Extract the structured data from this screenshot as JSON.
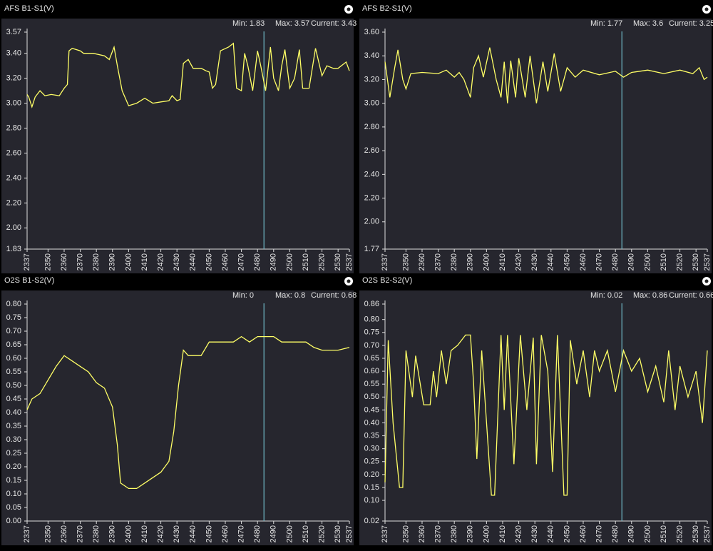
{
  "chart_data": [
    {
      "type": "line",
      "title": "AFS B1-S1(V)",
      "stats": [
        "Min: 1.83",
        "Max: 3.57",
        "Current: 3.43"
      ],
      "color": "#ffff66",
      "cursor_x": 2484,
      "x": [
        2337,
        2338,
        2340,
        2342,
        2345,
        2348,
        2352,
        2357,
        2360,
        2362,
        2363,
        2365,
        2370,
        2372,
        2378,
        2385,
        2388,
        2391,
        2393,
        2396,
        2400,
        2405,
        2410,
        2415,
        2420,
        2425,
        2427,
        2430,
        2432,
        2434,
        2437,
        2440,
        2445,
        2448,
        2450,
        2452,
        2454,
        2457,
        2462,
        2465,
        2467,
        2470,
        2472,
        2474,
        2477,
        2480,
        2482,
        2485,
        2488,
        2490,
        2493,
        2495,
        2497,
        2500,
        2503,
        2506,
        2508,
        2512,
        2516,
        2520,
        2523,
        2527,
        2530,
        2535,
        2537
      ],
      "values": [
        3.07,
        3.05,
        2.97,
        3.05,
        3.1,
        3.06,
        3.07,
        3.06,
        3.12,
        3.15,
        3.42,
        3.44,
        3.42,
        3.4,
        3.4,
        3.38,
        3.35,
        3.45,
        3.3,
        3.1,
        2.98,
        3.0,
        3.04,
        3.0,
        3.01,
        3.02,
        3.06,
        3.02,
        3.03,
        3.32,
        3.35,
        3.28,
        3.28,
        3.26,
        3.25,
        3.12,
        3.15,
        3.42,
        3.45,
        3.48,
        3.12,
        3.1,
        3.4,
        3.3,
        3.1,
        3.42,
        3.3,
        3.1,
        3.45,
        3.2,
        3.1,
        3.3,
        3.43,
        3.12,
        3.2,
        3.43,
        3.12,
        3.12,
        3.44,
        3.22,
        3.3,
        3.28,
        3.28,
        3.33,
        3.26
      ],
      "xlim": [
        2337,
        2537
      ],
      "xticks": [
        2337,
        2350,
        2360,
        2370,
        2380,
        2390,
        2400,
        2410,
        2420,
        2430,
        2440,
        2450,
        2460,
        2470,
        2480,
        2490,
        2500,
        2510,
        2520,
        2530,
        2537
      ],
      "ylim": [
        1.83,
        3.57
      ],
      "yticks": [
        1.83,
        {
          "value": 2,
          "label": "2.00"
        },
        {
          "value": 2.2,
          "label": "2.20"
        },
        {
          "value": 2.4,
          "label": "2.40"
        },
        {
          "value": 2.6,
          "label": "2.60"
        },
        {
          "value": 2.8,
          "label": "2.80"
        },
        {
          "value": 3,
          "label": "3.00"
        },
        {
          "value": 3.2,
          "label": "3.20"
        },
        {
          "value": 3.4,
          "label": "3.40"
        },
        3.57
      ]
    },
    {
      "type": "line",
      "title": "AFS B2-S1(V)",
      "stats": [
        "Min: 1.77",
        "Max: 3.6",
        "Current: 3.25"
      ],
      "color": "#ffff66",
      "cursor_x": 2484,
      "x": [
        2337,
        2340,
        2343,
        2345,
        2348,
        2350,
        2353,
        2360,
        2370,
        2375,
        2380,
        2383,
        2386,
        2390,
        2392,
        2395,
        2398,
        2402,
        2406,
        2409,
        2411,
        2413,
        2415,
        2418,
        2420,
        2424,
        2427,
        2431,
        2435,
        2438,
        2442,
        2446,
        2450,
        2455,
        2460,
        2470,
        2480,
        2485,
        2490,
        2500,
        2510,
        2520,
        2528,
        2532,
        2535,
        2537
      ],
      "values": [
        3.35,
        3.05,
        3.3,
        3.45,
        3.2,
        3.12,
        3.25,
        3.26,
        3.25,
        3.28,
        3.22,
        3.26,
        3.2,
        3.05,
        3.3,
        3.4,
        3.22,
        3.47,
        3.2,
        3.05,
        3.35,
        3.0,
        3.36,
        3.05,
        3.38,
        3.05,
        3.4,
        3.0,
        3.35,
        3.1,
        3.42,
        3.1,
        3.3,
        3.22,
        3.28,
        3.24,
        3.27,
        3.22,
        3.26,
        3.28,
        3.25,
        3.28,
        3.25,
        3.3,
        3.2,
        3.22
      ],
      "xlim": [
        2337,
        2537
      ],
      "xticks": [
        2337,
        2350,
        2360,
        2370,
        2380,
        2390,
        2400,
        2410,
        2420,
        2430,
        2440,
        2450,
        2460,
        2470,
        2480,
        2490,
        2500,
        2510,
        2520,
        2530,
        2537
      ],
      "ylim": [
        1.77,
        3.6
      ],
      "yticks": [
        1.77,
        {
          "value": 2,
          "label": "2.00"
        },
        {
          "value": 2.2,
          "label": "2.20"
        },
        {
          "value": 2.4,
          "label": "2.40"
        },
        {
          "value": 2.6,
          "label": "2.60"
        },
        {
          "value": 2.8,
          "label": "2.80"
        },
        {
          "value": 3,
          "label": "3.00"
        },
        {
          "value": 3.2,
          "label": "3.20"
        },
        {
          "value": 3.4,
          "label": "3.40"
        },
        {
          "value": 3.6,
          "label": "3.60"
        }
      ]
    },
    {
      "type": "line",
      "title": "O2S B1-S2(V)",
      "stats": [
        "Min: 0",
        "Max: 0.8",
        "Current: 0.68"
      ],
      "color": "#ffff66",
      "cursor_x": 2484,
      "x": [
        2337,
        2340,
        2345,
        2350,
        2355,
        2360,
        2365,
        2370,
        2375,
        2380,
        2385,
        2390,
        2393,
        2395,
        2400,
        2405,
        2410,
        2415,
        2420,
        2425,
        2428,
        2431,
        2434,
        2437,
        2445,
        2450,
        2465,
        2470,
        2475,
        2480,
        2490,
        2495,
        2510,
        2515,
        2520,
        2530,
        2537
      ],
      "values": [
        0.41,
        0.45,
        0.47,
        0.52,
        0.57,
        0.61,
        0.59,
        0.57,
        0.55,
        0.51,
        0.49,
        0.42,
        0.28,
        0.14,
        0.12,
        0.12,
        0.14,
        0.16,
        0.18,
        0.22,
        0.33,
        0.5,
        0.63,
        0.61,
        0.61,
        0.66,
        0.66,
        0.68,
        0.66,
        0.68,
        0.68,
        0.66,
        0.66,
        0.64,
        0.63,
        0.63,
        0.64
      ],
      "xlim": [
        2337,
        2537
      ],
      "xticks": [
        2337,
        2350,
        2360,
        2370,
        2380,
        2390,
        2400,
        2410,
        2420,
        2430,
        2440,
        2450,
        2460,
        2470,
        2480,
        2490,
        2500,
        2510,
        2520,
        2530,
        2537
      ],
      "ylim": [
        0,
        0.8
      ],
      "yticks": [
        {
          "value": 0,
          "label": "0.00"
        },
        0.05,
        {
          "value": 0.1,
          "label": "0.10"
        },
        0.15,
        {
          "value": 0.2,
          "label": "0.20"
        },
        0.25,
        {
          "value": 0.3,
          "label": "0.30"
        },
        0.35,
        {
          "value": 0.4,
          "label": "0.40"
        },
        0.45,
        {
          "value": 0.5,
          "label": "0.50"
        },
        0.55,
        {
          "value": 0.6,
          "label": "0.60"
        },
        0.65,
        {
          "value": 0.7,
          "label": "0.70"
        },
        0.75,
        {
          "value": 0.8,
          "label": "0.80"
        }
      ]
    },
    {
      "type": "line",
      "title": "O2S B2-S2(V)",
      "stats": [
        "Min: 0.02",
        "Max: 0.86",
        "Current: 0.66"
      ],
      "color": "#ffff66",
      "cursor_x": 2484,
      "x": [
        2337,
        2339,
        2342,
        2346,
        2348,
        2350,
        2354,
        2356,
        2361,
        2365,
        2367,
        2369,
        2372,
        2375,
        2378,
        2382,
        2387,
        2390,
        2392,
        2394,
        2397,
        2400,
        2403,
        2405,
        2409,
        2411,
        2413,
        2417,
        2421,
        2425,
        2429,
        2431,
        2434,
        2438,
        2441,
        2444,
        2448,
        2450,
        2452,
        2456,
        2460,
        2464,
        2467,
        2470,
        2475,
        2480,
        2485,
        2490,
        2495,
        2500,
        2505,
        2510,
        2513,
        2517,
        2520,
        2525,
        2530,
        2534,
        2537
      ],
      "values": [
        0.17,
        0.72,
        0.4,
        0.15,
        0.15,
        0.68,
        0.5,
        0.66,
        0.47,
        0.47,
        0.6,
        0.5,
        0.68,
        0.55,
        0.68,
        0.7,
        0.74,
        0.74,
        0.55,
        0.26,
        0.68,
        0.4,
        0.12,
        0.12,
        0.74,
        0.45,
        0.74,
        0.24,
        0.74,
        0.45,
        0.73,
        0.24,
        0.74,
        0.6,
        0.21,
        0.74,
        0.12,
        0.12,
        0.72,
        0.55,
        0.68,
        0.5,
        0.68,
        0.6,
        0.68,
        0.52,
        0.68,
        0.6,
        0.65,
        0.52,
        0.62,
        0.48,
        0.68,
        0.45,
        0.62,
        0.5,
        0.6,
        0.4,
        0.68
      ],
      "xlim": [
        2337,
        2537
      ],
      "xticks": [
        2337,
        2350,
        2360,
        2370,
        2380,
        2390,
        2400,
        2410,
        2420,
        2430,
        2440,
        2450,
        2460,
        2470,
        2480,
        2490,
        2500,
        2510,
        2520,
        2530,
        2537
      ],
      "ylim": [
        0.02,
        0.86
      ],
      "yticks": [
        0.02,
        {
          "value": 0.1,
          "label": "0.10"
        },
        0.15,
        {
          "value": 0.2,
          "label": "0.20"
        },
        0.25,
        {
          "value": 0.3,
          "label": "0.30"
        },
        0.35,
        {
          "value": 0.4,
          "label": "0.40"
        },
        0.45,
        {
          "value": 0.5,
          "label": "0.50"
        },
        0.55,
        {
          "value": 0.6,
          "label": "0.60"
        },
        0.65,
        {
          "value": 0.7,
          "label": "0.70"
        },
        0.75,
        {
          "value": 0.8,
          "label": "0.80"
        },
        0.86
      ]
    }
  ]
}
